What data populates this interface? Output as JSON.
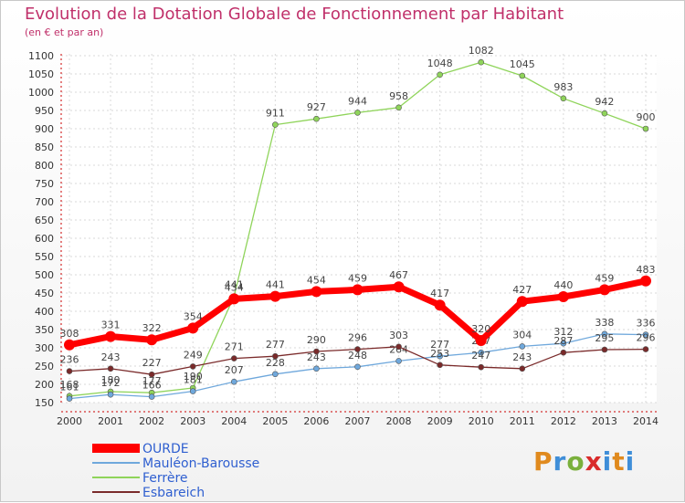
{
  "chart_data": {
    "type": "line",
    "title": "Evolution de la Dotation Globale de Fonctionnement par Habitant",
    "subtitle": "(en € et par an)",
    "x": [
      2000,
      2001,
      2002,
      2003,
      2004,
      2005,
      2006,
      2007,
      2008,
      2009,
      2010,
      2011,
      2012,
      2013,
      2014
    ],
    "ylim": [
      150,
      1100
    ],
    "yticks": [
      150,
      200,
      250,
      300,
      350,
      400,
      450,
      500,
      550,
      600,
      650,
      700,
      750,
      800,
      850,
      900,
      950,
      1000,
      1050,
      1100
    ],
    "series": [
      {
        "name": "OURDE",
        "color": "#ff0000",
        "values": [
          308,
          331,
          322,
          354,
          434,
          441,
          454,
          459,
          467,
          417,
          320,
          427,
          440,
          459,
          483
        ],
        "labels": [
          "308",
          "331",
          "322",
          "354",
          "434",
          "441",
          "454",
          "459",
          "467",
          "417",
          "320",
          "427",
          "440",
          "459",
          "483"
        ]
      },
      {
        "name": "Mauléon-Barousse",
        "color": "#6fa8dc",
        "values": [
          161,
          172,
          166,
          181,
          207,
          228,
          243,
          248,
          264,
          277,
          287,
          304,
          312,
          338,
          336
        ],
        "labels": [
          "161",
          "172",
          "166",
          "181",
          "207",
          "228",
          "243",
          "248",
          "264",
          "277",
          "287",
          "304",
          "312",
          "338",
          "336"
        ]
      },
      {
        "name": "Ferrère",
        "color": "#8fd45a",
        "values": [
          168,
          180,
          177,
          190,
          441,
          911,
          927,
          944,
          958,
          1048,
          1082,
          1045,
          983,
          942,
          900
        ],
        "labels": [
          "168",
          "180",
          "177",
          "190",
          "441",
          "911",
          "927",
          "944",
          "958",
          "1048",
          "1082",
          "1045",
          "983",
          "942",
          "900"
        ]
      },
      {
        "name": "Esbareich",
        "color": "#7a2a2a",
        "values": [
          236,
          243,
          227,
          249,
          271,
          277,
          290,
          296,
          303,
          253,
          247,
          243,
          287,
          295,
          296
        ],
        "labels": [
          "236",
          "243",
          "227",
          "249",
          "271",
          "277",
          "290",
          "296",
          "303",
          "253",
          "247",
          "243",
          "287",
          "295",
          "296"
        ]
      }
    ]
  },
  "logo_text": "Proxiti"
}
